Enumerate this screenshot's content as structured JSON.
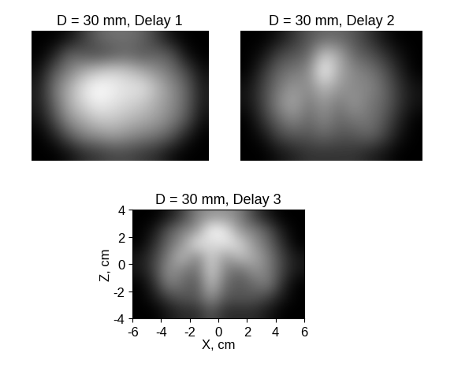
{
  "chart_data": [
    {
      "type": "heatmap",
      "title": "D = 30 mm, Delay 1",
      "color": "gray",
      "tick_labels": false,
      "cells": [
        [
          0,
          0,
          0.05,
          0.2,
          0.35,
          0.4,
          0.4,
          0.35,
          0.2,
          0.05,
          0,
          0
        ],
        [
          0,
          0.1,
          0.35,
          0.3,
          0.25,
          0.3,
          0.35,
          0.3,
          0.35,
          0.3,
          0.05,
          0
        ],
        [
          0.05,
          0.3,
          0.45,
          0.6,
          0.7,
          0.75,
          0.7,
          0.6,
          0.5,
          0.4,
          0.25,
          0.05
        ],
        [
          0.1,
          0.4,
          0.6,
          0.8,
          0.9,
          0.85,
          0.8,
          0.8,
          0.65,
          0.5,
          0.35,
          0.1
        ],
        [
          0.1,
          0.35,
          0.6,
          0.75,
          0.85,
          0.8,
          0.75,
          0.7,
          0.6,
          0.5,
          0.35,
          0.1
        ],
        [
          0.05,
          0.25,
          0.5,
          0.6,
          0.7,
          0.7,
          0.65,
          0.6,
          0.55,
          0.45,
          0.3,
          0.05
        ],
        [
          0,
          0.1,
          0.3,
          0.45,
          0.5,
          0.55,
          0.5,
          0.45,
          0.4,
          0.3,
          0.1,
          0
        ],
        [
          0,
          0,
          0.05,
          0.15,
          0.2,
          0.25,
          0.25,
          0.2,
          0.15,
          0.05,
          0,
          0
        ]
      ]
    },
    {
      "type": "heatmap",
      "title": "D = 30 mm, Delay 2",
      "color": "gray",
      "tick_labels": false,
      "cells": [
        [
          0,
          0,
          0.05,
          0.15,
          0.25,
          0.3,
          0.3,
          0.25,
          0.15,
          0.05,
          0,
          0
        ],
        [
          0,
          0.05,
          0.2,
          0.25,
          0.3,
          0.6,
          0.5,
          0.3,
          0.25,
          0.15,
          0.05,
          0
        ],
        [
          0,
          0.15,
          0.3,
          0.35,
          0.4,
          0.75,
          0.5,
          0.4,
          0.35,
          0.25,
          0.1,
          0
        ],
        [
          0.05,
          0.2,
          0.35,
          0.45,
          0.4,
          0.55,
          0.45,
          0.4,
          0.4,
          0.3,
          0.15,
          0.05
        ],
        [
          0.05,
          0.2,
          0.4,
          0.5,
          0.35,
          0.45,
          0.35,
          0.45,
          0.35,
          0.3,
          0.15,
          0.05
        ],
        [
          0,
          0.15,
          0.3,
          0.4,
          0.3,
          0.4,
          0.3,
          0.35,
          0.35,
          0.25,
          0.1,
          0
        ],
        [
          0,
          0.05,
          0.2,
          0.25,
          0.25,
          0.3,
          0.25,
          0.25,
          0.3,
          0.2,
          0.05,
          0
        ],
        [
          0,
          0,
          0.05,
          0.1,
          0.15,
          0.15,
          0.15,
          0.15,
          0.1,
          0.05,
          0,
          0
        ]
      ]
    },
    {
      "type": "heatmap",
      "title": "D = 30 mm, Delay 3",
      "color": "gray",
      "x_label": "X, cm",
      "y_label": "Z, cm",
      "xlim": [
        -6,
        6
      ],
      "ylim": [
        -4,
        4
      ],
      "xticks": [
        -6,
        -4,
        -2,
        0,
        2,
        4,
        6
      ],
      "yticks": [
        -4,
        -2,
        0,
        2,
        4
      ],
      "cells": [
        [
          0,
          0,
          0.05,
          0.15,
          0.3,
          0.35,
          0.35,
          0.3,
          0.15,
          0.05,
          0,
          0
        ],
        [
          0,
          0.05,
          0.2,
          0.3,
          0.35,
          0.6,
          0.55,
          0.35,
          0.3,
          0.2,
          0.05,
          0
        ],
        [
          0,
          0.1,
          0.25,
          0.35,
          0.55,
          0.5,
          0.55,
          0.5,
          0.35,
          0.25,
          0.1,
          0
        ],
        [
          0.05,
          0.15,
          0.3,
          0.45,
          0.3,
          0.5,
          0.35,
          0.45,
          0.4,
          0.3,
          0.15,
          0.05
        ],
        [
          0.05,
          0.15,
          0.35,
          0.3,
          0.25,
          0.5,
          0.3,
          0.25,
          0.35,
          0.3,
          0.15,
          0.05
        ],
        [
          0,
          0.1,
          0.3,
          0.25,
          0.2,
          0.45,
          0.25,
          0.2,
          0.25,
          0.3,
          0.1,
          0
        ],
        [
          0,
          0.05,
          0.15,
          0.2,
          0.2,
          0.35,
          0.2,
          0.2,
          0.2,
          0.15,
          0.05,
          0
        ],
        [
          0,
          0,
          0.05,
          0.1,
          0.1,
          0.2,
          0.1,
          0.1,
          0.1,
          0.05,
          0,
          0
        ]
      ]
    }
  ]
}
